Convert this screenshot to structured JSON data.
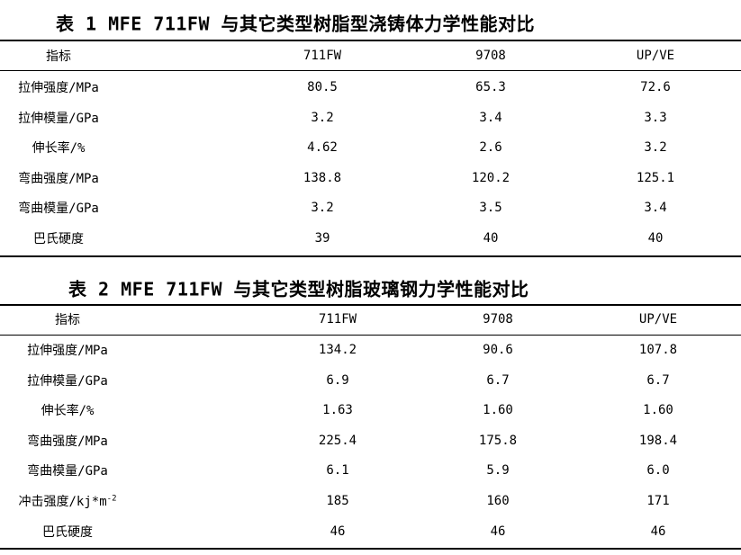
{
  "tables": [
    {
      "title": "表 1 MFE 711FW 与其它类型树脂型浇铸体力学性能对比",
      "header": [
        "指标",
        "711FW",
        "9708",
        "UP/VE"
      ],
      "rows": [
        [
          "拉伸强度/MPa",
          "80.5",
          "65.3",
          "72.6"
        ],
        [
          "拉伸模量/GPa",
          "3.2",
          "3.4",
          "3.3"
        ],
        [
          "伸长率/%",
          "4.62",
          "2.6",
          "3.2"
        ],
        [
          "弯曲强度/MPa",
          "138.8",
          "120.2",
          "125.1"
        ],
        [
          "弯曲模量/GPa",
          "3.2",
          "3.5",
          "3.4"
        ],
        [
          "巴氏硬度",
          "39",
          "40",
          "40"
        ]
      ]
    },
    {
      "title": "表 2 MFE 711FW 与其它类型树脂玻璃钢力学性能对比",
      "header": [
        "指标",
        "711FW",
        "9708",
        "UP/VE"
      ],
      "rows": [
        [
          "拉伸强度/MPa",
          "134.2",
          "90.6",
          "107.8"
        ],
        [
          "拉伸模量/GPa",
          "6.9",
          "6.7",
          "6.7"
        ],
        [
          "伸长率/%",
          "1.63",
          "1.60",
          "1.60"
        ],
        [
          "弯曲强度/MPa",
          "225.4",
          "175.8",
          "198.4"
        ],
        [
          "弯曲模量/GPa",
          "6.1",
          "5.9",
          "6.0"
        ],
        [
          {
            "text": "冲击强度/kj*m",
            "sup": "-2"
          },
          "185",
          "160",
          "171"
        ],
        [
          "巴氏硬度",
          "46",
          "46",
          "46"
        ]
      ]
    }
  ]
}
